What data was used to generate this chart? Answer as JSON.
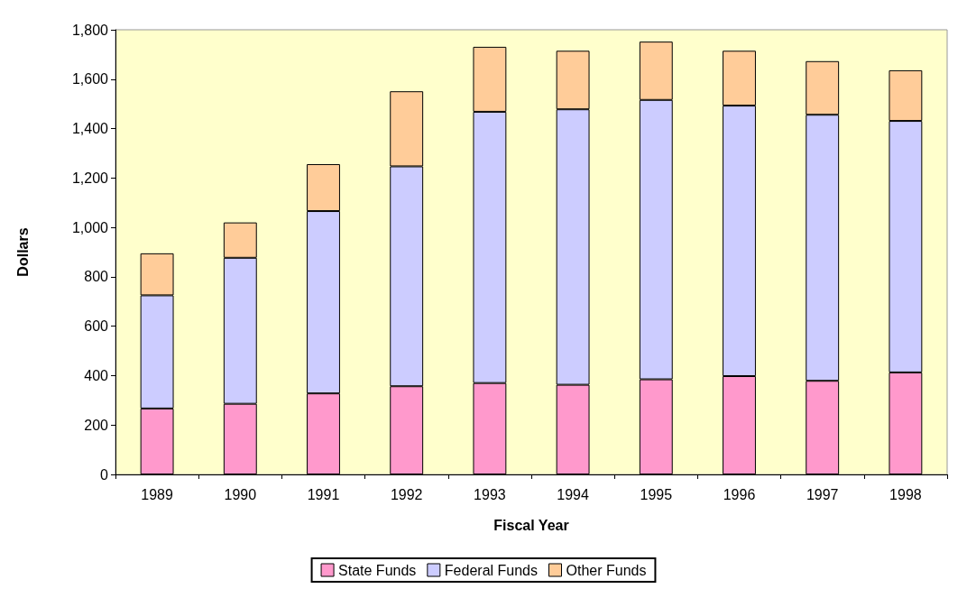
{
  "chart_data": {
    "type": "bar",
    "stacked": true,
    "xlabel": "Fiscal Year",
    "ylabel": "Dollars",
    "categories": [
      "1989",
      "1990",
      "1991",
      "1992",
      "1993",
      "1994",
      "1995",
      "1996",
      "1997",
      "1998"
    ],
    "series": [
      {
        "name": "State Funds",
        "color": "#ff99cc",
        "values": [
          267,
          286,
          328,
          357,
          370,
          363,
          385,
          398,
          379,
          413
        ]
      },
      {
        "name": "Federal Funds",
        "color": "#ccccff",
        "values": [
          458,
          591,
          738,
          890,
          1098,
          1115,
          1131,
          1095,
          1077,
          1018
        ]
      },
      {
        "name": "Other Funds",
        "color": "#ffcc99",
        "values": [
          170,
          143,
          190,
          304,
          263,
          237,
          236,
          222,
          217,
          205
        ]
      }
    ],
    "ylim": [
      0,
      1800
    ],
    "yticks": [
      {
        "value": 0,
        "label": "0"
      },
      {
        "value": 200,
        "label": "200"
      },
      {
        "value": 400,
        "label": "400"
      },
      {
        "value": 600,
        "label": "600"
      },
      {
        "value": 800,
        "label": "800"
      },
      {
        "value": 1000,
        "label": "1,000"
      },
      {
        "value": 1200,
        "label": "1,200"
      },
      {
        "value": 1400,
        "label": "1,400"
      },
      {
        "value": 1600,
        "label": "1,600"
      },
      {
        "value": 1800,
        "label": "1,800"
      }
    ],
    "grid": false,
    "legend": "bottom"
  }
}
